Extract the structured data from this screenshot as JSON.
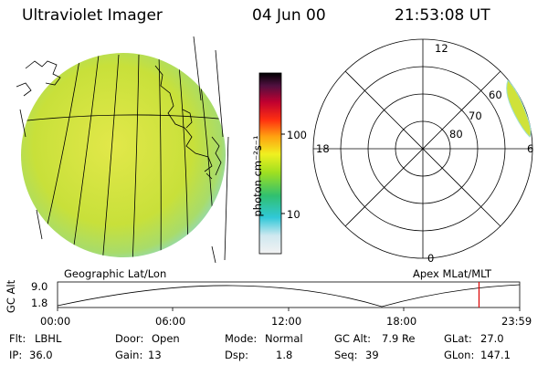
{
  "header": {
    "title": "Ultraviolet Imager",
    "date": "04 Jun 00",
    "time": "21:53:08 UT"
  },
  "colorbar": {
    "unit_label": "photon cm⁻²s⁻¹",
    "tick_100": "100",
    "tick_10": "10"
  },
  "left_panel": {
    "label": "Geographic Lat/Lon"
  },
  "polar": {
    "label": "Apex MLat/MLT",
    "mlt_12": "12",
    "mlt_18": "18",
    "mlt_6": "6",
    "mlt_0": "0",
    "lat_60": "60",
    "lat_70": "70",
    "lat_80": "80"
  },
  "timeline": {
    "ylabel": "GC Alt",
    "ymax": "9.0",
    "ymin": "1.8",
    "t0": "00:00",
    "t1": "06:00",
    "t2": "12:00",
    "t3": "18:00",
    "t4": "23:59",
    "current_time_fraction": 0.912
  },
  "info": {
    "flt_label": "Flt:",
    "flt_value": "LBHL",
    "door_label": "Door:",
    "door_value": "Open",
    "mode_label": "Mode:",
    "mode_value": "Normal",
    "gcalt_label": "GC Alt:",
    "gcalt_value": "7.9 Re",
    "glat_label": "GLat:",
    "glat_value": "27.0",
    "ip_label": "IP:",
    "ip_value": "36.0",
    "gain_label": "Gain:",
    "gain_value": "13",
    "dsp_label": "Dsp:",
    "dsp_value": "1.8",
    "seq_label": "Seq:",
    "seq_value": "39",
    "glon_label": "GLon:",
    "glon_value": "147.1"
  },
  "colors": {
    "earth_fill": "#cfe23a",
    "earth_edge": "#9fe0d0",
    "marker": "#dd0000"
  }
}
